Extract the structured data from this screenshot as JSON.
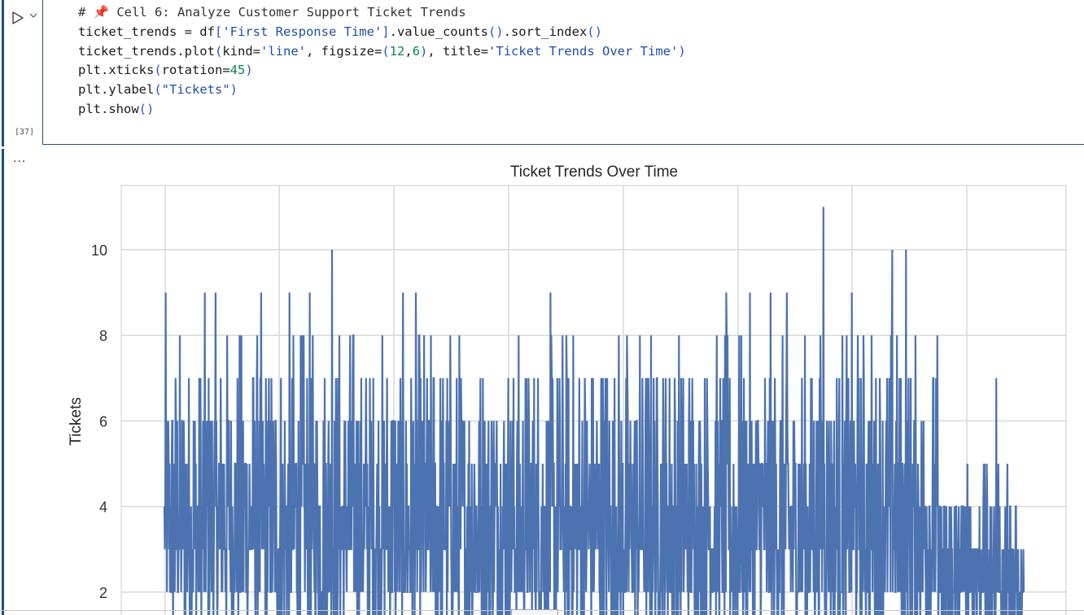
{
  "cell": {
    "execution_count": "[37]",
    "output_prompt": "...",
    "code_lines": [
      [
        {
          "t": "# ",
          "c": "tok-comment"
        },
        {
          "t": "📌",
          "c": "tok-comment"
        },
        {
          "t": " Cell 6: Analyze Customer Support Ticket Trends",
          "c": "tok-comment"
        }
      ],
      [
        {
          "t": "ticket_trends = df"
        },
        {
          "t": "[",
          "c": "tok-paren"
        },
        {
          "t": "'First Response Time'",
          "c": "tok-str"
        },
        {
          "t": "]",
          "c": "tok-paren"
        },
        {
          "t": ".value_counts"
        },
        {
          "t": "()",
          "c": "tok-paren"
        },
        {
          "t": ".sort_index"
        },
        {
          "t": "()",
          "c": "tok-paren"
        }
      ],
      [
        {
          "t": "ticket_trends.plot"
        },
        {
          "t": "(",
          "c": "tok-paren"
        },
        {
          "t": "kind="
        },
        {
          "t": "'line'",
          "c": "tok-str"
        },
        {
          "t": ", figsize="
        },
        {
          "t": "(",
          "c": "tok-paren"
        },
        {
          "t": "12",
          "c": "tok-num"
        },
        {
          "t": ","
        },
        {
          "t": "6",
          "c": "tok-num"
        },
        {
          "t": ")",
          "c": "tok-paren"
        },
        {
          "t": ", title="
        },
        {
          "t": "'Ticket Trends Over Time'",
          "c": "tok-str"
        },
        {
          "t": ")",
          "c": "tok-paren"
        }
      ],
      [
        {
          "t": "plt.xticks"
        },
        {
          "t": "(",
          "c": "tok-paren"
        },
        {
          "t": "rotation="
        },
        {
          "t": "45",
          "c": "tok-num"
        },
        {
          "t": ")",
          "c": "tok-paren"
        }
      ],
      [
        {
          "t": "plt.ylabel"
        },
        {
          "t": "(",
          "c": "tok-paren"
        },
        {
          "t": "\"Tickets\"",
          "c": "tok-str"
        },
        {
          "t": ")",
          "c": "tok-paren"
        }
      ],
      [
        {
          "t": "plt.show"
        },
        {
          "t": "()",
          "c": "tok-paren"
        }
      ]
    ]
  },
  "colors": {
    "line": "#4c72b0",
    "grid": "#d9d9d9",
    "cell_bar": "#1f4e79"
  },
  "icons": {
    "run": "play-triangle-icon",
    "expand": "chevron-down-icon"
  },
  "chart_data": {
    "type": "line",
    "title": "Ticket Trends Over Time",
    "ylabel": "Tickets",
    "xlabel": "",
    "yticks": [
      2,
      4,
      6,
      8,
      10
    ],
    "ylim": [
      1.5,
      11.5
    ],
    "grid": true,
    "n_points": 2000,
    "series": [
      {
        "values_summary": "dense noisy step series of ticket counts per First Response Time value, mostly 2-6 with spikes to 8-10, peak 11, tapering to 2-4 at the right end"
      }
    ],
    "highlights": [
      {
        "x_frac": 0.195,
        "value": 10
      },
      {
        "x_frac": 0.767,
        "value": 11
      },
      {
        "x_frac": 0.847,
        "value": 10
      },
      {
        "x_frac": 0.863,
        "value": 10
      },
      {
        "x_frac": 0.968,
        "value": 7
      }
    ]
  }
}
